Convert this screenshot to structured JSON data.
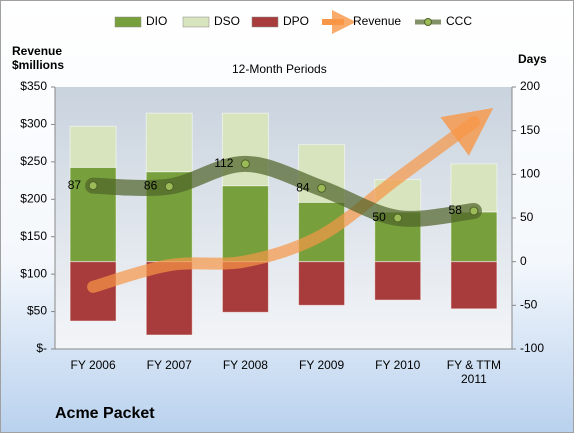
{
  "chart_data": {
    "type": "bar-line-combo",
    "title": "12-Month Periods",
    "ylabel": [
      "Revenue",
      "$millions"
    ],
    "y2label": "Days",
    "categories": [
      "FY 2006",
      "FY 2007",
      "FY 2008",
      "FY 2009",
      "FY 2010",
      "FY & TTM 2011"
    ],
    "ylim": [
      0,
      350
    ],
    "yticks": [
      {
        "value": 0,
        "label": "$-"
      },
      {
        "value": 50,
        "label": "$50"
      },
      {
        "value": 100,
        "label": "$100"
      },
      {
        "value": 150,
        "label": "$150"
      },
      {
        "value": 200,
        "label": "$200"
      },
      {
        "value": 250,
        "label": "$250"
      },
      {
        "value": 300,
        "label": "$300"
      },
      {
        "value": 350,
        "label": "$350"
      }
    ],
    "y2lim": [
      -100,
      200
    ],
    "y2ticks": [
      -100,
      -50,
      0,
      50,
      100,
      150,
      200
    ],
    "legend": "top",
    "series": [
      {
        "name": "DIO",
        "type": "bar",
        "axis": "y2",
        "color": "#77a03c",
        "values": [
          108,
          103,
          87,
          68,
          57,
          57
        ]
      },
      {
        "name": "DSO",
        "type": "bar",
        "axis": "y2",
        "color": "#d7e4bd",
        "values": [
          47,
          67,
          83,
          66,
          37,
          55
        ]
      },
      {
        "name": "DPO",
        "type": "bar",
        "axis": "y2",
        "color": "#a83c3c",
        "values": [
          -68,
          -84,
          -58,
          -50,
          -44,
          -54
        ]
      },
      {
        "name": "Revenue",
        "type": "line",
        "color": "#f79646",
        "values": [
          83,
          112,
          117,
          152,
          228,
          303
        ]
      },
      {
        "name": "CCC",
        "type": "line",
        "axis": "y2",
        "color": "#4f6228",
        "values": [
          87,
          86,
          112,
          84,
          50,
          58
        ]
      }
    ]
  },
  "footer": "Acme Packet"
}
